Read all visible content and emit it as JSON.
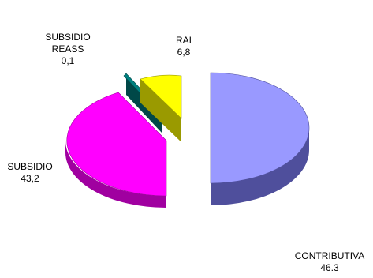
{
  "chart_data": {
    "type": "pie",
    "style": "3d-exploded",
    "slices": [
      {
        "label": "CONTRIBUTIVA",
        "value_text": "46.3",
        "value": 46.3,
        "color": "#9999ff",
        "side_color": "#4f4f9c"
      },
      {
        "label": "SUBSIDIO",
        "value_text": "43,2",
        "value": 43.2,
        "color": "#ff00ff",
        "side_color": "#a000a0"
      },
      {
        "label": "SUBSIDIO REASS",
        "label_lines": [
          "SUBSIDIO",
          "REASS"
        ],
        "value_text": "0,1",
        "value": 0.1,
        "color": "#008080",
        "side_color": "#004848"
      },
      {
        "label": "RAI",
        "value_text": "6,8",
        "value": 6.8,
        "color": "#ffff00",
        "side_color": "#9a9a00"
      }
    ]
  }
}
